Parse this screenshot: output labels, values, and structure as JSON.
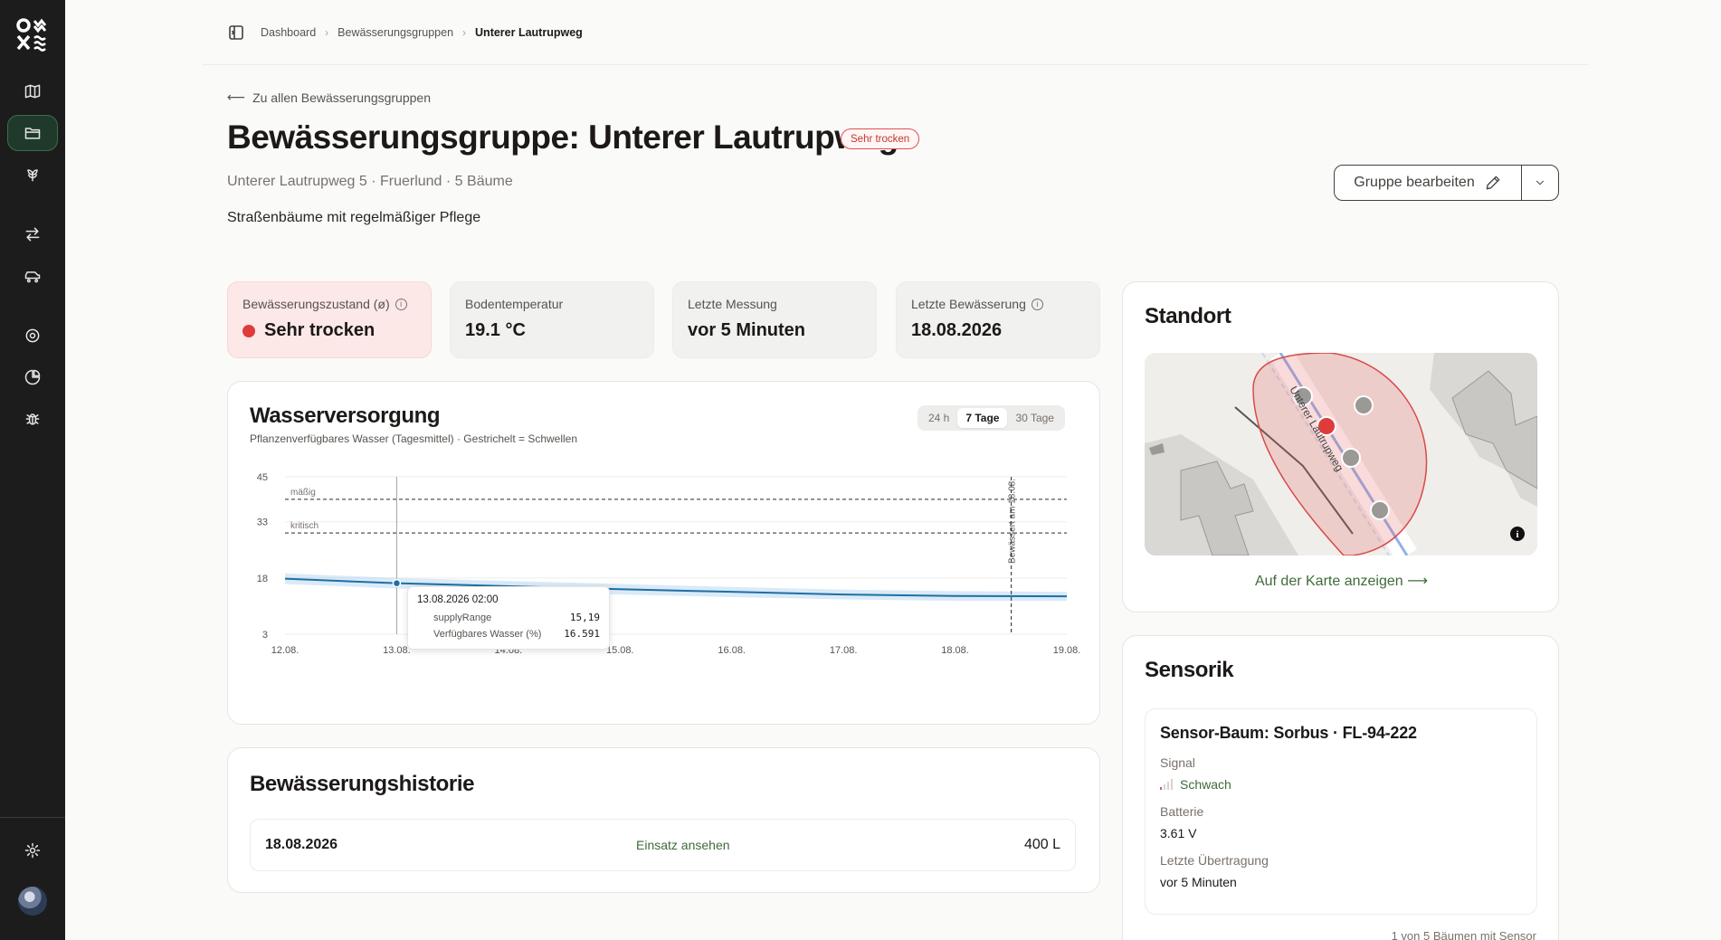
{
  "app": {
    "logo": "greenecity-logo",
    "nav_icons": [
      "map-icon",
      "folder-icon",
      "tree-icon",
      "arrows-icon",
      "vehicle-icon",
      "target-icon",
      "pie-chart-icon",
      "bug-icon",
      "settings-icon"
    ]
  },
  "breadcrumbs": {
    "items": [
      "Dashboard",
      "Bewässerungsgruppen",
      "Unterer Lautrupweg"
    ]
  },
  "page": {
    "back_label": "Zu allen Bewässerungsgruppen",
    "title": "Bewässerungsgruppe: Unterer Lautrupweg",
    "status_badge": "Sehr trocken",
    "subtitle": "Unterer Lautrupweg 5 · Fruerlund · 5 Bäume",
    "description": "Straßenbäume mit regelmäßiger Pflege",
    "edit_label": "Gruppe bearbeiten"
  },
  "stats": [
    {
      "label": "Bewässerungszustand (ø)",
      "value": "Sehr trocken",
      "info": true,
      "alert": true
    },
    {
      "label": "Bodentemperatur",
      "value": "19.1 °C",
      "info": false,
      "alert": false
    },
    {
      "label": "Letzte Messung",
      "value": "vor 5 Minuten",
      "info": false,
      "alert": false
    },
    {
      "label": "Letzte Bewässerung",
      "value": "18.08.2026",
      "info": true,
      "alert": false
    }
  ],
  "chart_card": {
    "title": "Wasserversorgung",
    "subtitle": "Pflanzenverfügbares Wasser (Tagesmittel) · Gestrichelt = Schwellen",
    "range_tabs": [
      "24 h",
      "7 Tage",
      "30 Tage"
    ],
    "active_range": "7 Tage"
  },
  "chart_data": {
    "type": "line",
    "x": [
      "12.08.",
      "13.08.",
      "14.08.",
      "15.08.",
      "16.08.",
      "17.08.",
      "18.08.",
      "19.08."
    ],
    "series": [
      {
        "values": [
          17.8,
          16.6,
          15.8,
          15.0,
          14.3,
          13.6,
          13.2,
          13.1
        ],
        "band_low": [
          16.4,
          15.2,
          14.4,
          13.6,
          12.9,
          12.3,
          11.9,
          11.9
        ],
        "band_high": [
          19.2,
          18.0,
          17.2,
          16.4,
          15.6,
          14.9,
          14.5,
          14.3
        ]
      }
    ],
    "ylim": [
      3,
      45
    ],
    "yticks": [
      45,
      33,
      18,
      3
    ],
    "thresholds": [
      {
        "label": "mäßig",
        "value": 39
      },
      {
        "label": "kritisch",
        "value": 30
      }
    ],
    "event_marker": {
      "x": "18.08.",
      "label": "Bewässert am 18.08."
    },
    "hover_x": "13.08.",
    "grid": true
  },
  "tooltip": {
    "date": "13.08.2026 02:00",
    "rows": [
      {
        "label": "supplyRange",
        "value": "15,19"
      },
      {
        "label": "Verfügbares Wasser (%)",
        "value": "16.591"
      }
    ]
  },
  "history": {
    "title": "Bewässerungshistorie",
    "rows": [
      {
        "date": "18.08.2026",
        "link": "Einsatz ansehen",
        "amount": "400 L"
      }
    ]
  },
  "location": {
    "title": "Standort",
    "map_label": "Unterer Lautrupweg",
    "map_link": "Auf der Karte anzeigen"
  },
  "sensor": {
    "title": "Sensorik",
    "tree_title": "Sensor-Baum: Sorbus · FL-94-222",
    "signal_label": "Signal",
    "signal_value": "Schwach",
    "signal_level": 1,
    "battery_label": "Batterie",
    "battery_value": "3.61 V",
    "last_label": "Letzte Übertragung",
    "last_value": "vor 5 Minuten",
    "footer": "1 von 5 Bäumen mit Sensor"
  }
}
